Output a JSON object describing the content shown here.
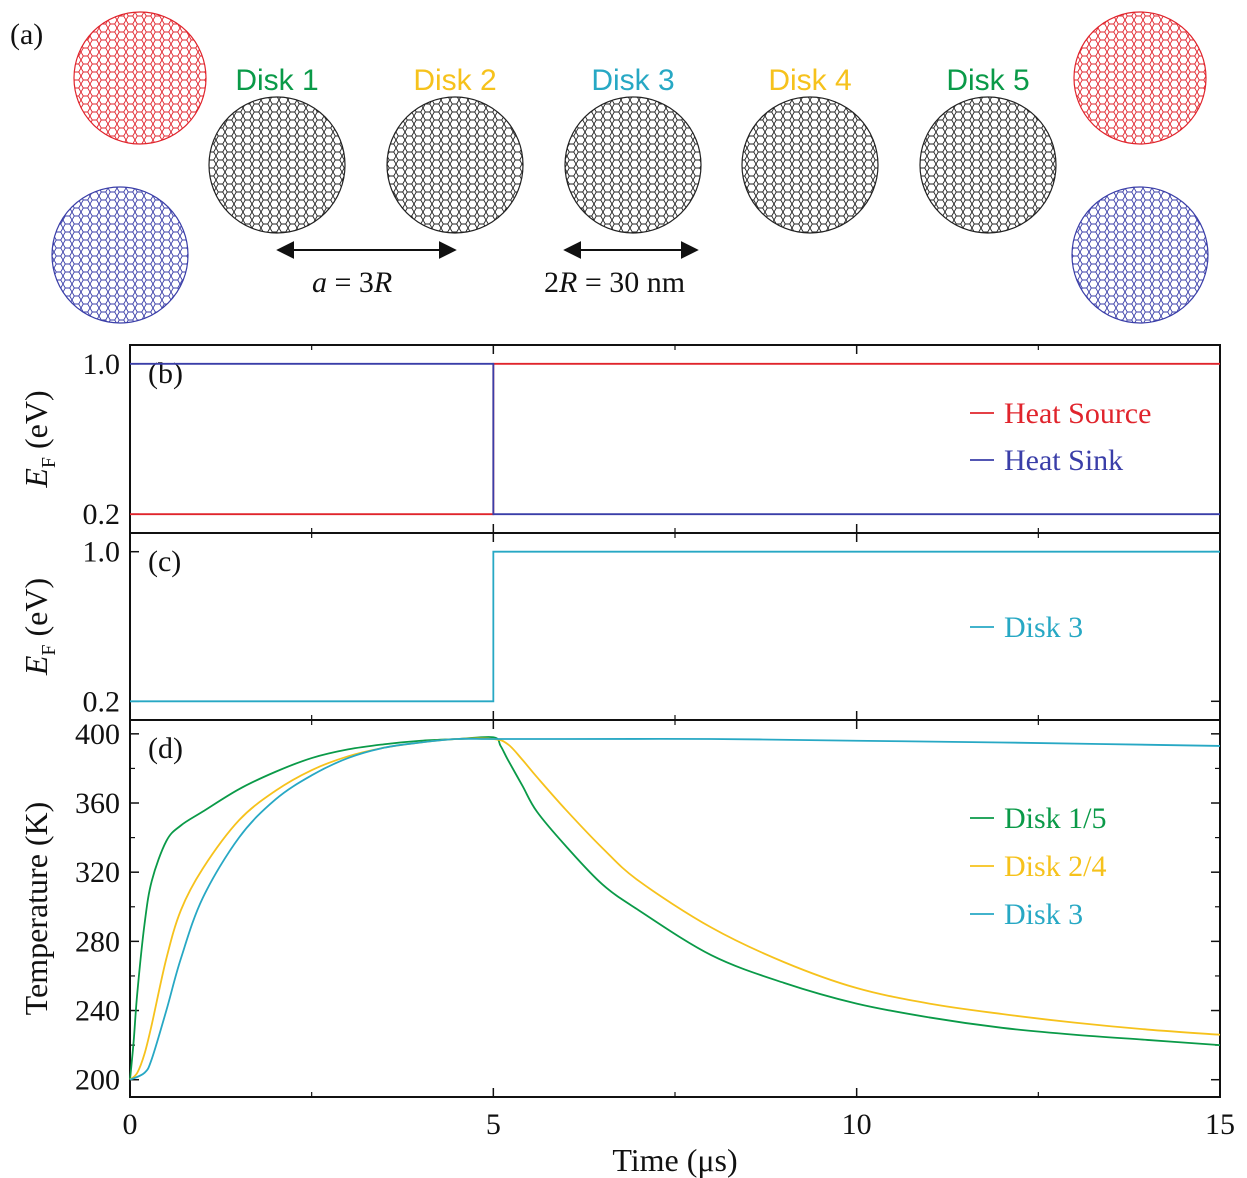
{
  "panel_a": {
    "label": "(a)",
    "disks": [
      {
        "label": "Disk 1",
        "color": "#0a9a48"
      },
      {
        "label": "Disk 2",
        "color": "#f6c21c"
      },
      {
        "label": "Disk 3",
        "color": "#27a8c4"
      },
      {
        "label": "Disk 4",
        "color": "#f6c21c"
      },
      {
        "label": "Disk 5",
        "color": "#0a9a48"
      }
    ],
    "source_color": "#e0242c",
    "sink_color": "#3a3ea8",
    "disk_color": "#222222",
    "spacing_annotation": {
      "italic_a": "a",
      "eq": " = 3",
      "italic_R": "R"
    },
    "diameter_annotation": {
      "prefix": "2",
      "italic_R": "R",
      "rest": " = 30 nm"
    }
  },
  "chart_data": [
    {
      "panel": "(b)",
      "type": "line",
      "ylabel_main": "E",
      "ylabel_sub": "F",
      "ylabel_unit": " (eV)",
      "yticks": [
        "0.2",
        "1.0"
      ],
      "ytick_values": [
        0.2,
        1.0
      ],
      "ylim": [
        0.1,
        1.1
      ],
      "xlim": [
        0,
        15
      ],
      "legend_position": "right",
      "series": [
        {
          "name": "Heat Source",
          "color": "#e0242c",
          "x": [
            0,
            5,
            5,
            15
          ],
          "y": [
            0.2,
            0.2,
            1.0,
            1.0
          ]
        },
        {
          "name": "Heat Sink",
          "color": "#3a3ea8",
          "x": [
            0,
            5,
            5,
            15
          ],
          "y": [
            1.0,
            1.0,
            0.2,
            0.2
          ]
        }
      ]
    },
    {
      "panel": "(c)",
      "type": "line",
      "ylabel_main": "E",
      "ylabel_sub": "F",
      "ylabel_unit": " (eV)",
      "yticks": [
        "0.2",
        "1.0"
      ],
      "ytick_values": [
        0.2,
        1.0
      ],
      "ylim": [
        0.1,
        1.1
      ],
      "xlim": [
        0,
        15
      ],
      "legend_position": "right",
      "series": [
        {
          "name": "Disk 3",
          "color": "#27a8c4",
          "x": [
            0,
            5,
            5,
            15
          ],
          "y": [
            0.2,
            0.2,
            1.0,
            1.0
          ]
        }
      ]
    },
    {
      "panel": "(d)",
      "type": "line",
      "ylabel": "Temperature (K)",
      "xlabel": "Time (μs)",
      "xticks": [
        "0",
        "5",
        "10",
        "15"
      ],
      "xtick_values": [
        0,
        5,
        10,
        15
      ],
      "yticks": [
        "200",
        "240",
        "280",
        "320",
        "360",
        "400"
      ],
      "ytick_values": [
        200,
        240,
        280,
        320,
        360,
        400
      ],
      "xlim": [
        0,
        15
      ],
      "ylim": [
        190,
        408
      ],
      "legend_position": "right",
      "series": [
        {
          "name": "Disk 1/5",
          "color": "#0a9a48",
          "x": [
            0,
            0.05,
            0.1,
            0.2,
            0.3,
            0.5,
            0.7,
            1.0,
            1.5,
            2,
            2.5,
            3,
            3.5,
            4,
            4.5,
            5,
            5.1,
            5.2,
            5.4,
            5.6,
            6,
            6.5,
            7,
            8,
            9,
            10,
            11,
            12,
            13,
            14,
            15
          ],
          "y": [
            200,
            222,
            250,
            290,
            315,
            338,
            347,
            355,
            368,
            378,
            386,
            391,
            394,
            396,
            397,
            398,
            393,
            385,
            370,
            355,
            335,
            313,
            298,
            272,
            256,
            244,
            236,
            230,
            226,
            223,
            220
          ]
        },
        {
          "name": "Disk 2/4",
          "color": "#f6c21c",
          "x": [
            0,
            0.1,
            0.2,
            0.3,
            0.5,
            0.7,
            1.0,
            1.5,
            2,
            2.5,
            3,
            3.5,
            4,
            4.5,
            5,
            5.2,
            5.4,
            5.6,
            6,
            6.5,
            7,
            8,
            9,
            10,
            11,
            12,
            13,
            14,
            15
          ],
          "y": [
            200,
            204,
            215,
            232,
            270,
            298,
            322,
            350,
            367,
            379,
            387,
            392,
            395,
            397,
            397,
            394,
            385,
            375,
            356,
            334,
            315,
            288,
            268,
            253,
            244,
            238,
            233,
            229,
            226
          ]
        },
        {
          "name": "Disk 3",
          "color": "#27a8c4",
          "x": [
            0,
            0.2,
            0.3,
            0.5,
            0.7,
            1.0,
            1.5,
            2,
            2.5,
            3,
            3.5,
            4,
            4.5,
            5,
            6,
            8,
            10,
            12,
            15
          ],
          "y": [
            200,
            204,
            212,
            240,
            270,
            305,
            340,
            362,
            376,
            386,
            392,
            395,
            397,
            397,
            397,
            397,
            396,
            395,
            393
          ]
        }
      ]
    }
  ]
}
